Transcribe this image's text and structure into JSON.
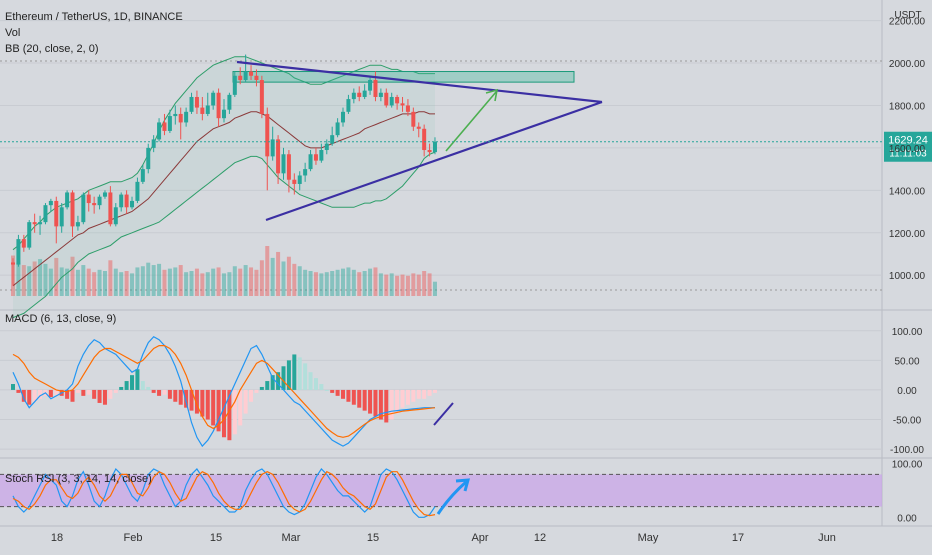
{
  "header": {
    "symbol": "Ethereum / TetherUS, 1D, BINANCE",
    "vol_label": "Vol",
    "bb_label": "BB (20, close, 2, 0)",
    "currency": "USDT",
    "last_price": "1629.24",
    "countdown": "11:11:03"
  },
  "colors": {
    "background": "#d6d9de",
    "up": "#26a69a",
    "down": "#ef5350",
    "bb_band": "#2e9e6a",
    "bb_basis": "#8b3a3a",
    "trendline": "#3b2fa3",
    "arrow_green": "#4caf50",
    "macd_line": "#2196f3",
    "signal_line": "#ff6d00",
    "rsi_fill": "#c9a6e8",
    "annotation_blue": "#2196f3"
  },
  "chart_data": [
    {
      "type": "candlestick",
      "title": "Ethereum / TetherUS, 1D, BINANCE",
      "ylabel": "USDT",
      "ylim": [
        850,
        2250
      ],
      "y_ticks": [
        "1000.00",
        "1200.00",
        "1400.00",
        "1600.00",
        "1800.00",
        "2000.00",
        "2200.00"
      ],
      "x_ticks": [
        "18",
        "Feb",
        "15",
        "Mar",
        "15",
        "Apr",
        "12",
        "May",
        "17",
        "Jun"
      ],
      "candles": [
        [
          1060,
          1050,
          1080,
          950
        ],
        [
          1050,
          1170,
          1190,
          1040
        ],
        [
          1170,
          1130,
          1190,
          1110
        ],
        [
          1130,
          1250,
          1260,
          1120
        ],
        [
          1250,
          1240,
          1290,
          1200
        ],
        [
          1240,
          1250,
          1280,
          1190
        ],
        [
          1250,
          1330,
          1340,
          1240
        ],
        [
          1330,
          1350,
          1360,
          1300
        ],
        [
          1350,
          1230,
          1370,
          1150
        ],
        [
          1230,
          1320,
          1340,
          1200
        ],
        [
          1320,
          1390,
          1400,
          1310
        ],
        [
          1390,
          1230,
          1400,
          1180
        ],
        [
          1230,
          1250,
          1280,
          1210
        ],
        [
          1250,
          1380,
          1390,
          1240
        ],
        [
          1380,
          1340,
          1400,
          1300
        ],
        [
          1340,
          1330,
          1370,
          1290
        ],
        [
          1330,
          1370,
          1380,
          1310
        ],
        [
          1370,
          1390,
          1400,
          1360
        ],
        [
          1390,
          1240,
          1420,
          1230
        ],
        [
          1240,
          1320,
          1340,
          1230
        ],
        [
          1320,
          1380,
          1390,
          1300
        ],
        [
          1380,
          1320,
          1400,
          1290
        ],
        [
          1320,
          1350,
          1370,
          1310
        ],
        [
          1350,
          1440,
          1460,
          1340
        ],
        [
          1440,
          1500,
          1520,
          1430
        ],
        [
          1500,
          1600,
          1620,
          1480
        ],
        [
          1600,
          1640,
          1660,
          1580
        ],
        [
          1640,
          1720,
          1740,
          1630
        ],
        [
          1720,
          1680,
          1760,
          1660
        ],
        [
          1680,
          1750,
          1780,
          1670
        ],
        [
          1750,
          1760,
          1800,
          1710
        ],
        [
          1760,
          1720,
          1790,
          1640
        ],
        [
          1720,
          1770,
          1790,
          1700
        ],
        [
          1770,
          1840,
          1860,
          1760
        ],
        [
          1840,
          1790,
          1870,
          1760
        ],
        [
          1790,
          1760,
          1840,
          1730
        ],
        [
          1760,
          1800,
          1860,
          1750
        ],
        [
          1800,
          1860,
          1870,
          1780
        ],
        [
          1860,
          1740,
          1880,
          1700
        ],
        [
          1740,
          1780,
          1830,
          1720
        ],
        [
          1780,
          1850,
          1860,
          1760
        ],
        [
          1850,
          1940,
          1960,
          1840
        ],
        [
          1940,
          1920,
          1980,
          1900
        ],
        [
          1920,
          1960,
          2040,
          1910
        ],
        [
          1960,
          1940,
          1990,
          1920
        ],
        [
          1940,
          1920,
          1970,
          1890
        ],
        [
          1920,
          1760,
          1940,
          1740
        ],
        [
          1760,
          1560,
          1790,
          1400
        ],
        [
          1560,
          1640,
          1700,
          1540
        ],
        [
          1640,
          1480,
          1660,
          1430
        ],
        [
          1480,
          1570,
          1600,
          1450
        ],
        [
          1570,
          1450,
          1590,
          1390
        ],
        [
          1450,
          1430,
          1480,
          1380
        ],
        [
          1430,
          1470,
          1490,
          1400
        ],
        [
          1470,
          1500,
          1530,
          1440
        ],
        [
          1500,
          1570,
          1590,
          1490
        ],
        [
          1570,
          1540,
          1600,
          1520
        ],
        [
          1540,
          1590,
          1620,
          1530
        ],
        [
          1590,
          1620,
          1640,
          1570
        ],
        [
          1620,
          1660,
          1700,
          1610
        ],
        [
          1660,
          1720,
          1740,
          1650
        ],
        [
          1720,
          1770,
          1790,
          1700
        ],
        [
          1770,
          1830,
          1850,
          1760
        ],
        [
          1830,
          1860,
          1880,
          1810
        ],
        [
          1860,
          1840,
          1890,
          1820
        ],
        [
          1840,
          1870,
          1900,
          1830
        ],
        [
          1870,
          1920,
          1940,
          1850
        ],
        [
          1920,
          1840,
          1960,
          1820
        ],
        [
          1840,
          1860,
          1880,
          1820
        ],
        [
          1860,
          1800,
          1880,
          1790
        ],
        [
          1800,
          1840,
          1860,
          1790
        ],
        [
          1840,
          1810,
          1850,
          1780
        ],
        [
          1810,
          1800,
          1840,
          1770
        ],
        [
          1800,
          1770,
          1830,
          1750
        ],
        [
          1770,
          1700,
          1790,
          1680
        ],
        [
          1700,
          1690,
          1720,
          1650
        ],
        [
          1690,
          1590,
          1710,
          1560
        ],
        [
          1590,
          1580,
          1620,
          1560
        ],
        [
          1580,
          1629,
          1650,
          1570
        ]
      ],
      "volumes": [
        340,
        280,
        260,
        250,
        290,
        310,
        270,
        230,
        320,
        240,
        230,
        330,
        220,
        260,
        230,
        200,
        220,
        210,
        300,
        230,
        200,
        210,
        190,
        240,
        250,
        280,
        260,
        270,
        220,
        230,
        240,
        260,
        200,
        210,
        230,
        190,
        200,
        230,
        240,
        190,
        200,
        250,
        230,
        260,
        240,
        220,
        300,
        420,
        320,
        370,
        290,
        330,
        270,
        250,
        220,
        210,
        200,
        190,
        200,
        210,
        220,
        230,
        240,
        220,
        200,
        210,
        230,
        240,
        190,
        180,
        190,
        170,
        180,
        170,
        190,
        180,
        210,
        190,
        120
      ],
      "bollinger": {
        "upper": [
          1120,
          1140,
          1170,
          1200,
          1230,
          1250,
          1280,
          1300,
          1320,
          1330,
          1340,
          1350,
          1360,
          1380,
          1400,
          1410,
          1420,
          1430,
          1440,
          1440,
          1440,
          1450,
          1460,
          1480,
          1520,
          1570,
          1620,
          1680,
          1730,
          1770,
          1810,
          1840,
          1870,
          1900,
          1930,
          1950,
          1970,
          1990,
          2000,
          2010,
          2020,
          2030,
          2030,
          2030,
          2020,
          2010,
          2000,
          1990,
          1980,
          1970,
          1960,
          1950,
          1930,
          1920,
          1910,
          1900,
          1900,
          1900,
          1910,
          1920,
          1930,
          1940,
          1950,
          1960,
          1970,
          1980,
          1990,
          1990,
          1990,
          1980,
          1970,
          1970,
          1960,
          1960,
          1960,
          1950,
          1950,
          1950,
          1950
        ],
        "basis": [
          950,
          970,
          990,
          1010,
          1030,
          1050,
          1070,
          1090,
          1110,
          1130,
          1150,
          1170,
          1190,
          1200,
          1220,
          1230,
          1240,
          1250,
          1260,
          1270,
          1280,
          1290,
          1300,
          1320,
          1340,
          1360,
          1390,
          1420,
          1450,
          1480,
          1510,
          1540,
          1570,
          1600,
          1630,
          1650,
          1670,
          1690,
          1700,
          1710,
          1720,
          1740,
          1750,
          1760,
          1770,
          1770,
          1760,
          1750,
          1730,
          1710,
          1690,
          1670,
          1650,
          1630,
          1610,
          1600,
          1600,
          1600,
          1610,
          1620,
          1630,
          1640,
          1650,
          1660,
          1670,
          1690,
          1700,
          1710,
          1720,
          1730,
          1740,
          1750,
          1760,
          1760,
          1760,
          1770,
          1770,
          1760,
          1760
        ],
        "lower": [
          800,
          810,
          820,
          840,
          860,
          880,
          900,
          930,
          960,
          990,
          1010,
          1030,
          1060,
          1080,
          1100,
          1110,
          1120,
          1130,
          1140,
          1160,
          1180,
          1190,
          1200,
          1210,
          1220,
          1230,
          1240,
          1250,
          1270,
          1290,
          1310,
          1330,
          1350,
          1370,
          1390,
          1410,
          1430,
          1450,
          1470,
          1490,
          1510,
          1530,
          1540,
          1550,
          1560,
          1560,
          1550,
          1520,
          1490,
          1460,
          1440,
          1420,
          1400,
          1380,
          1370,
          1360,
          1350,
          1340,
          1330,
          1320,
          1320,
          1320,
          1320,
          1320,
          1330,
          1340,
          1340,
          1350,
          1350,
          1360,
          1380,
          1400,
          1420,
          1450,
          1480,
          1510,
          1550,
          1570,
          1580
        ]
      },
      "resistance_zone": [
        1910,
        1960
      ],
      "annotations": [
        "descending trendline",
        "ascending trendline",
        "green projection arrow"
      ]
    },
    {
      "type": "line",
      "title": "MACD (6, 13, close, 9)",
      "ylim": [
        -110,
        125
      ],
      "y_ticks": [
        "-100.00",
        "-50.00",
        "0.00",
        "50.00",
        "100.00"
      ],
      "histogram": [
        10,
        -5,
        -20,
        -25,
        -20,
        -15,
        -10,
        -12,
        -8,
        -10,
        -15,
        -20,
        -5,
        -10,
        -8,
        -15,
        -22,
        -25,
        -15,
        -5,
        5,
        15,
        25,
        35,
        15,
        5,
        -5,
        -10,
        -8,
        -15,
        -20,
        -25,
        -30,
        -35,
        -40,
        -45,
        -50,
        -60,
        -70,
        -80,
        -85,
        -75,
        -60,
        -40,
        -20,
        -5,
        5,
        15,
        25,
        30,
        40,
        50,
        60,
        55,
        45,
        30,
        20,
        10,
        0,
        -5,
        -10,
        -15,
        -20,
        -25,
        -30,
        -35,
        -40,
        -45,
        -50,
        -55,
        -50,
        -40,
        -30,
        -25,
        -20,
        -15,
        -15,
        -10,
        -5
      ],
      "macd": [
        30,
        10,
        -15,
        -30,
        -20,
        -10,
        -5,
        -15,
        -10,
        -5,
        0,
        10,
        40,
        60,
        75,
        85,
        80,
        70,
        65,
        60,
        50,
        40,
        30,
        35,
        60,
        80,
        90,
        85,
        75,
        60,
        40,
        15,
        -20,
        -55,
        -80,
        -95,
        -85,
        -70,
        -50,
        -30,
        -10,
        10,
        30,
        50,
        70,
        75,
        60,
        40,
        20,
        10,
        0,
        -10,
        -20,
        -25,
        -35,
        -45,
        -55,
        -65,
        -75,
        -85,
        -90,
        -95,
        -90,
        -80,
        -70,
        -60,
        -50,
        -45,
        -40,
        -38,
        -36,
        -35,
        -34,
        -33,
        -32,
        -31,
        -30,
        -30,
        -30
      ],
      "signal": [
        60,
        55,
        45,
        30,
        20,
        15,
        10,
        5,
        0,
        -2,
        -3,
        0,
        10,
        25,
        40,
        55,
        65,
        70,
        70,
        65,
        60,
        55,
        50,
        45,
        50,
        60,
        70,
        75,
        75,
        70,
        60,
        45,
        25,
        0,
        -25,
        -45,
        -60,
        -65,
        -60,
        -50,
        -35,
        -20,
        0,
        15,
        30,
        45,
        50,
        45,
        35,
        25,
        15,
        5,
        -5,
        -15,
        -25,
        -35,
        -45,
        -55,
        -65,
        -72,
        -78,
        -80,
        -78,
        -72,
        -65,
        -58,
        -52,
        -48,
        -45,
        -42,
        -40,
        -38,
        -36,
        -35,
        -34,
        -33,
        -32,
        -31,
        -30
      ]
    },
    {
      "type": "line",
      "title": "Stoch RSI (3, 3, 14, 14, close)",
      "ylim": [
        -5,
        105
      ],
      "y_ticks": [
        "0.00",
        "100.00"
      ],
      "bands": [
        20,
        80
      ],
      "k": [
        40,
        20,
        10,
        20,
        40,
        60,
        80,
        70,
        60,
        30,
        20,
        40,
        70,
        85,
        60,
        30,
        20,
        40,
        70,
        90,
        80,
        60,
        40,
        30,
        50,
        80,
        90,
        85,
        60,
        40,
        20,
        30,
        60,
        80,
        90,
        75,
        60,
        40,
        30,
        20,
        10,
        10,
        20,
        50,
        70,
        85,
        90,
        80,
        60,
        40,
        20,
        10,
        5,
        10,
        25,
        50,
        75,
        90,
        80,
        65,
        50,
        40,
        40,
        30,
        20,
        10,
        20,
        50,
        80,
        90,
        85,
        70,
        50,
        30,
        10,
        0,
        0,
        5,
        20
      ],
      "d": [
        35,
        30,
        20,
        15,
        25,
        40,
        60,
        70,
        70,
        55,
        40,
        35,
        45,
        65,
        75,
        60,
        40,
        30,
        40,
        60,
        80,
        80,
        65,
        45,
        40,
        55,
        75,
        85,
        80,
        65,
        45,
        30,
        35,
        55,
        75,
        85,
        80,
        65,
        45,
        30,
        20,
        15,
        15,
        25,
        45,
        65,
        80,
        85,
        80,
        65,
        45,
        25,
        15,
        10,
        15,
        30,
        50,
        70,
        85,
        80,
        70,
        55,
        45,
        40,
        30,
        20,
        15,
        25,
        50,
        75,
        85,
        85,
        70,
        50,
        30,
        15,
        5,
        3,
        5
      ]
    }
  ]
}
